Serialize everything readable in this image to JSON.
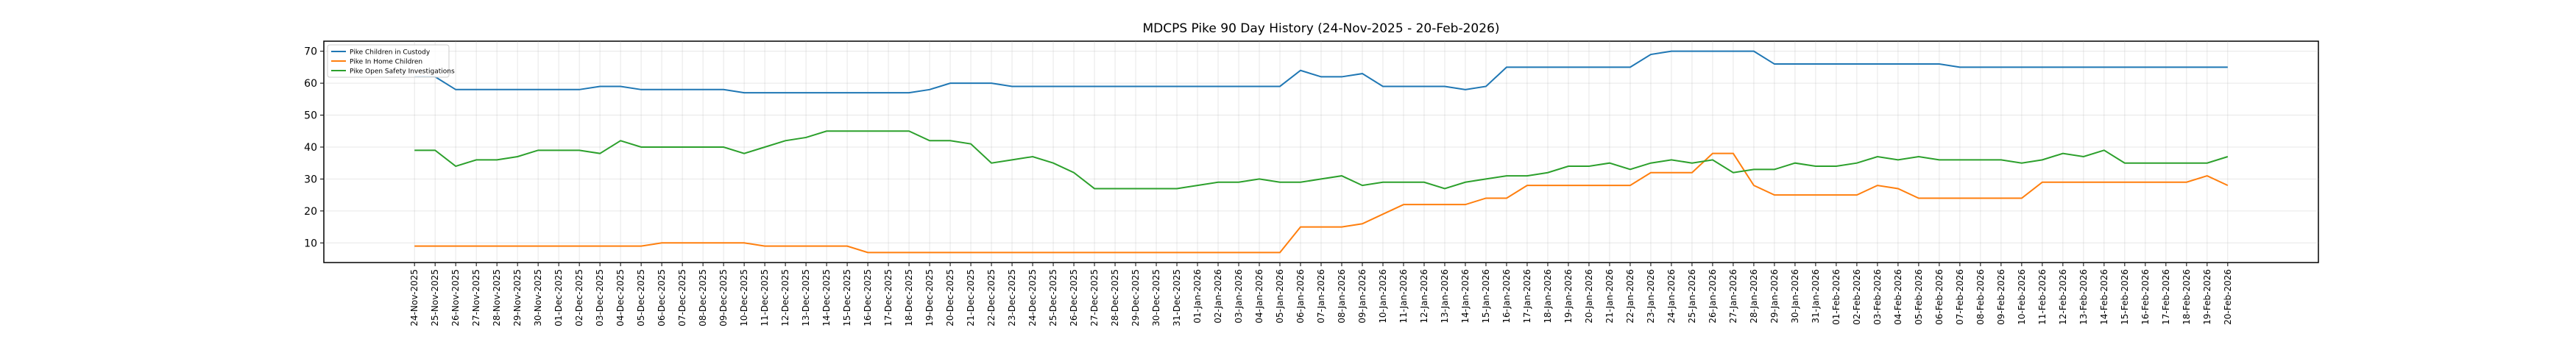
{
  "chart_data": {
    "type": "line",
    "title": "MDCPS Pike 90 Day History (24-Nov-2025 - 20-Feb-2026)",
    "categories": [
      "24-Nov-2025",
      "25-Nov-2025",
      "26-Nov-2025",
      "27-Nov-2025",
      "28-Nov-2025",
      "29-Nov-2025",
      "30-Nov-2025",
      "01-Dec-2025",
      "02-Dec-2025",
      "03-Dec-2025",
      "04-Dec-2025",
      "05-Dec-2025",
      "06-Dec-2025",
      "07-Dec-2025",
      "08-Dec-2025",
      "09-Dec-2025",
      "10-Dec-2025",
      "11-Dec-2025",
      "12-Dec-2025",
      "13-Dec-2025",
      "14-Dec-2025",
      "15-Dec-2025",
      "16-Dec-2025",
      "17-Dec-2025",
      "18-Dec-2025",
      "19-Dec-2025",
      "20-Dec-2025",
      "21-Dec-2025",
      "22-Dec-2025",
      "23-Dec-2025",
      "24-Dec-2025",
      "25-Dec-2025",
      "26-Dec-2025",
      "27-Dec-2025",
      "28-Dec-2025",
      "29-Dec-2025",
      "30-Dec-2025",
      "31-Dec-2025",
      "01-Jan-2026",
      "02-Jan-2026",
      "03-Jan-2026",
      "04-Jan-2026",
      "05-Jan-2026",
      "06-Jan-2026",
      "07-Jan-2026",
      "08-Jan-2026",
      "09-Jan-2026",
      "10-Jan-2026",
      "11-Jan-2026",
      "12-Jan-2026",
      "13-Jan-2026",
      "14-Jan-2026",
      "15-Jan-2026",
      "16-Jan-2026",
      "17-Jan-2026",
      "18-Jan-2026",
      "19-Jan-2026",
      "20-Jan-2026",
      "21-Jan-2026",
      "22-Jan-2026",
      "23-Jan-2026",
      "24-Jan-2026",
      "25-Jan-2026",
      "26-Jan-2026",
      "27-Jan-2026",
      "28-Jan-2026",
      "29-Jan-2026",
      "30-Jan-2026",
      "31-Jan-2026",
      "01-Feb-2026",
      "02-Feb-2026",
      "03-Feb-2026",
      "04-Feb-2026",
      "05-Feb-2026",
      "06-Feb-2026",
      "07-Feb-2026",
      "08-Feb-2026",
      "09-Feb-2026",
      "10-Feb-2026",
      "11-Feb-2026",
      "12-Feb-2026",
      "13-Feb-2026",
      "14-Feb-2026",
      "15-Feb-2026",
      "16-Feb-2026",
      "17-Feb-2026",
      "18-Feb-2026",
      "19-Feb-2026",
      "20-Feb-2026"
    ],
    "series": [
      {
        "name": "Pike Children in Custody",
        "color": "#1f77b4",
        "values": [
          62,
          62,
          58,
          58,
          58,
          58,
          58,
          58,
          58,
          59,
          59,
          58,
          58,
          58,
          58,
          58,
          57,
          57,
          57,
          57,
          57,
          57,
          57,
          57,
          57,
          58,
          60,
          60,
          60,
          59,
          59,
          59,
          59,
          59,
          59,
          59,
          59,
          59,
          59,
          59,
          59,
          59,
          59,
          64,
          62,
          62,
          63,
          59,
          59,
          59,
          59,
          58,
          59,
          65,
          65,
          65,
          65,
          65,
          65,
          65,
          69,
          70,
          70,
          70,
          70,
          70,
          66,
          66,
          66,
          66,
          66,
          66,
          66,
          66,
          66,
          65,
          65,
          65,
          65,
          65,
          65,
          65,
          65,
          65,
          65,
          65,
          65,
          65,
          65
        ]
      },
      {
        "name": "Pike In Home Children",
        "color": "#ff7f0e",
        "values": [
          9,
          9,
          9,
          9,
          9,
          9,
          9,
          9,
          9,
          9,
          9,
          9,
          10,
          10,
          10,
          10,
          10,
          9,
          9,
          9,
          9,
          9,
          7,
          7,
          7,
          7,
          7,
          7,
          7,
          7,
          7,
          7,
          7,
          7,
          7,
          7,
          7,
          7,
          7,
          7,
          7,
          7,
          7,
          15,
          15,
          15,
          16,
          19,
          22,
          22,
          22,
          22,
          24,
          24,
          28,
          28,
          28,
          28,
          28,
          28,
          32,
          32,
          32,
          38,
          38,
          28,
          25,
          25,
          25,
          25,
          25,
          28,
          27,
          24,
          24,
          24,
          24,
          24,
          24,
          29,
          29,
          29,
          29,
          29,
          29,
          29,
          29,
          31,
          28
        ]
      },
      {
        "name": "Pike Open Safety Investigations",
        "color": "#2ca02c",
        "values": [
          39,
          39,
          34,
          36,
          36,
          37,
          39,
          39,
          39,
          38,
          42,
          40,
          40,
          40,
          40,
          40,
          38,
          40,
          42,
          43,
          45,
          45,
          45,
          45,
          45,
          42,
          42,
          41,
          35,
          36,
          37,
          35,
          32,
          27,
          27,
          27,
          27,
          27,
          28,
          29,
          29,
          30,
          29,
          29,
          30,
          31,
          28,
          29,
          29,
          29,
          27,
          29,
          30,
          31,
          31,
          32,
          34,
          34,
          35,
          33,
          35,
          36,
          35,
          36,
          32,
          33,
          33,
          35,
          34,
          34,
          35,
          37,
          36,
          37,
          36,
          36,
          36,
          36,
          35,
          36,
          38,
          37,
          39,
          35,
          35,
          35,
          35,
          35,
          37
        ]
      }
    ],
    "ylim": [
      3.85,
      73.15
    ],
    "yticks": [
      10,
      20,
      30,
      40,
      50,
      60,
      70
    ],
    "grid": true,
    "legend": "upper left"
  }
}
